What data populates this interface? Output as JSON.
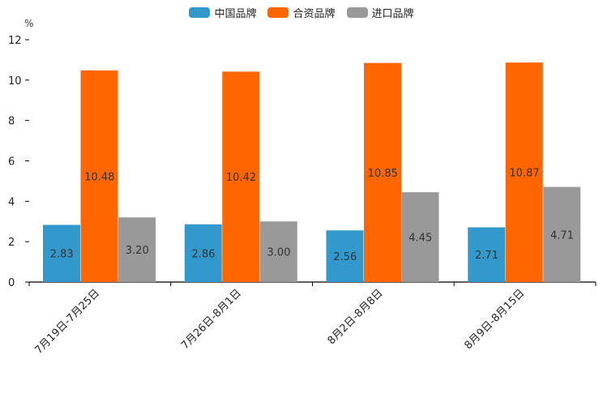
{
  "chart_data": {
    "type": "bar",
    "ylabel": "%",
    "ylim": [
      0,
      12
    ],
    "yticks": [
      0,
      2,
      4,
      6,
      8,
      10,
      12
    ],
    "categories": [
      "7月19日-7月25日",
      "7月26日-8月1日",
      "8月2日-8月8日",
      "8月9日-8月15日"
    ],
    "series": [
      {
        "name": "中国品牌",
        "color": "#3399cc",
        "values": [
          2.83,
          2.86,
          2.56,
          2.71
        ]
      },
      {
        "name": "合资品牌",
        "color": "#ff6600",
        "values": [
          10.48,
          10.42,
          10.85,
          10.87
        ]
      },
      {
        "name": "进口品牌",
        "color": "#999999",
        "values": [
          3.2,
          3.0,
          4.45,
          4.71
        ]
      }
    ],
    "data_labels": [
      [
        "2.83",
        "2.86",
        "2.56",
        "2.71"
      ],
      [
        "10.48",
        "10.42",
        "10.85",
        "10.87"
      ],
      [
        "3.20",
        "3.00",
        "4.45",
        "4.71"
      ]
    ],
    "legend_position": "top-center"
  }
}
